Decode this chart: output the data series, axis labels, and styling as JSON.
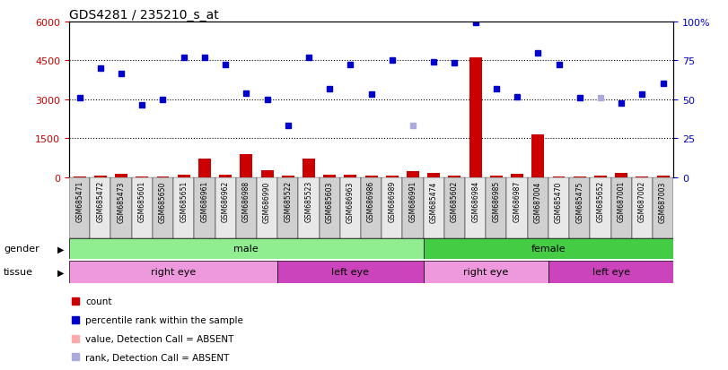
{
  "title": "GDS4281 / 235210_s_at",
  "samples": [
    "GSM685471",
    "GSM685472",
    "GSM685473",
    "GSM685601",
    "GSM685650",
    "GSM685651",
    "GSM686961",
    "GSM686962",
    "GSM686988",
    "GSM686990",
    "GSM685522",
    "GSM685523",
    "GSM685603",
    "GSM686963",
    "GSM686986",
    "GSM686989",
    "GSM686991",
    "GSM685474",
    "GSM685602",
    "GSM686984",
    "GSM686985",
    "GSM686987",
    "GSM687004",
    "GSM685470",
    "GSM685475",
    "GSM685652",
    "GSM687001",
    "GSM687002",
    "GSM687003"
  ],
  "count_values": [
    40,
    60,
    120,
    30,
    40,
    80,
    700,
    100,
    900,
    250,
    60,
    700,
    100,
    110,
    50,
    70,
    230,
    160,
    50,
    4600,
    50,
    120,
    1650,
    40,
    30,
    50,
    180,
    30,
    60
  ],
  "count_absent": [
    false,
    false,
    false,
    false,
    false,
    false,
    false,
    false,
    false,
    false,
    false,
    false,
    false,
    false,
    false,
    false,
    false,
    false,
    false,
    false,
    false,
    false,
    false,
    false,
    false,
    false,
    false,
    false,
    false
  ],
  "rank_values": [
    3050,
    4200,
    4000,
    2800,
    3000,
    4600,
    4600,
    4350,
    3250,
    3000,
    2000,
    4600,
    3400,
    4350,
    3200,
    4500,
    2000,
    4450,
    4400,
    5950,
    3400,
    3100,
    4800,
    4350,
    3050,
    3050,
    2850,
    3200,
    3600
  ],
  "rank_absent": [
    false,
    false,
    false,
    false,
    false,
    false,
    false,
    false,
    false,
    false,
    false,
    false,
    false,
    false,
    false,
    false,
    true,
    false,
    false,
    false,
    false,
    false,
    false,
    false,
    false,
    true,
    false,
    false,
    false
  ],
  "ylim_left": [
    0,
    6000
  ],
  "ylim_right": [
    0,
    100
  ],
  "yticks_left": [
    0,
    1500,
    3000,
    4500,
    6000
  ],
  "yticks_right": [
    0,
    25,
    50,
    75,
    100
  ],
  "gender_groups": [
    {
      "label": "male",
      "start": 0,
      "end": 17,
      "color": "#90ee90"
    },
    {
      "label": "female",
      "start": 17,
      "end": 29,
      "color": "#44cc44"
    }
  ],
  "tissue_groups": [
    {
      "label": "right eye",
      "start": 0,
      "end": 10,
      "color": "#ee99dd"
    },
    {
      "label": "left eye",
      "start": 10,
      "end": 17,
      "color": "#cc44bb"
    },
    {
      "label": "right eye",
      "start": 17,
      "end": 23,
      "color": "#ee99dd"
    },
    {
      "label": "left eye",
      "start": 23,
      "end": 29,
      "color": "#cc44bb"
    }
  ],
  "bar_color": "#cc0000",
  "rank_color": "#0000cc",
  "absent_rank_color": "#aaaadd",
  "absent_count_color": "#ffaaaa",
  "left_axis_color": "#cc0000",
  "right_axis_color": "#0000cc",
  "legend_items": [
    {
      "label": "count",
      "color": "#cc0000",
      "marker": "s"
    },
    {
      "label": "percentile rank within the sample",
      "color": "#0000cc",
      "marker": "s"
    },
    {
      "label": "value, Detection Call = ABSENT",
      "color": "#ffaaaa",
      "marker": "s"
    },
    {
      "label": "rank, Detection Call = ABSENT",
      "color": "#aaaadd",
      "marker": "s"
    }
  ]
}
